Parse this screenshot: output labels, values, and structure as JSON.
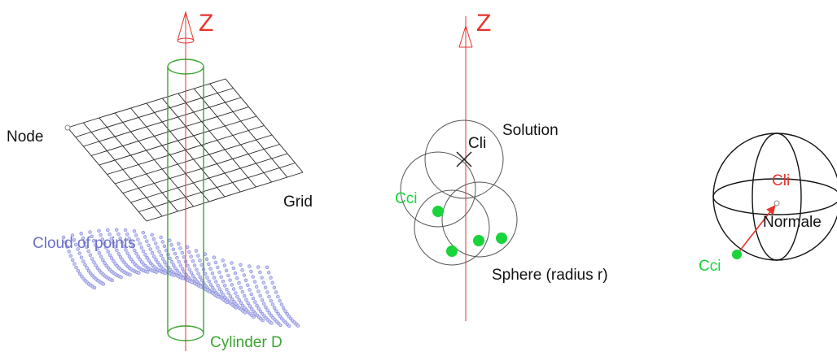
{
  "panel1": {
    "axis_label": "Z",
    "node_label": "Node",
    "grid_label": "Grid",
    "cloud_label": "Cloud of points",
    "cylinder_label": "Cylinder D"
  },
  "panel2": {
    "axis_label": "Z",
    "solution_label": "Solution",
    "cli_label": "Cli",
    "cci_label": "Cci",
    "sphere_label": "Sphere (radius r)"
  },
  "panel3": {
    "cli_label": "Cli",
    "normale_label": "Normale",
    "cci_label": "Cci"
  },
  "colors": {
    "axis": "#e8322b",
    "cylinder": "#3aa630",
    "cloud": "#7b80d8",
    "point": "#19d43a",
    "line": "#222222",
    "circle": "#555555"
  }
}
